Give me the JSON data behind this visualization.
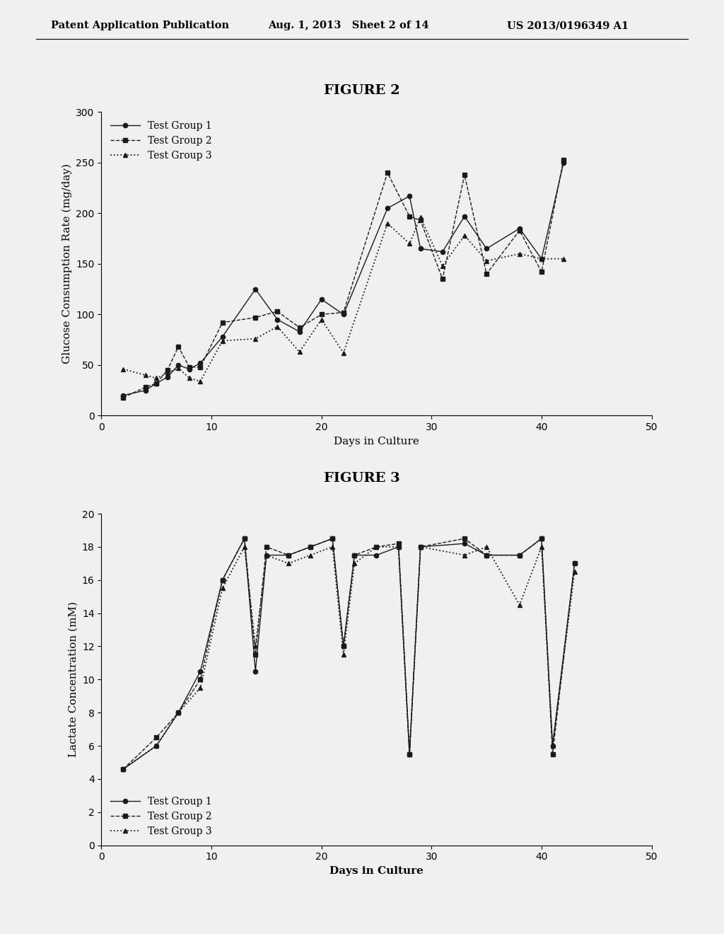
{
  "fig2_title": "FIGURE 2",
  "fig3_title": "FIGURE 3",
  "header_left": "Patent Application Publication",
  "header_mid": "Aug. 1, 2013   Sheet 2 of 14",
  "header_right": "US 2013/0196349 A1",
  "fig2": {
    "xlabel": "Days in Culture",
    "ylabel": "Glucose Consumption Rate (mg/day)",
    "xlim": [
      0,
      50
    ],
    "ylim": [
      0,
      300
    ],
    "xticks": [
      0,
      10,
      20,
      30,
      40,
      50
    ],
    "yticks": [
      0,
      50,
      100,
      150,
      200,
      250,
      300
    ],
    "group1_x": [
      2,
      4,
      5,
      6,
      7,
      8,
      9,
      11,
      14,
      16,
      18,
      20,
      22,
      26,
      28,
      29,
      31,
      33,
      35,
      38,
      40,
      42
    ],
    "group1_y": [
      20,
      25,
      32,
      38,
      50,
      46,
      52,
      78,
      125,
      95,
      83,
      115,
      100,
      205,
      217,
      165,
      162,
      197,
      165,
      185,
      155,
      250
    ],
    "group2_x": [
      2,
      4,
      5,
      6,
      7,
      8,
      9,
      11,
      14,
      16,
      18,
      20,
      22,
      26,
      28,
      29,
      31,
      33,
      35,
      38,
      40,
      42
    ],
    "group2_y": [
      18,
      28,
      32,
      45,
      68,
      48,
      48,
      92,
      97,
      103,
      87,
      100,
      102,
      240,
      197,
      193,
      135,
      238,
      140,
      183,
      142,
      253
    ],
    "group3_x": [
      2,
      4,
      5,
      6,
      7,
      8,
      9,
      11,
      14,
      16,
      18,
      20,
      22,
      26,
      28,
      29,
      31,
      33,
      35,
      38,
      40,
      42
    ],
    "group3_y": [
      46,
      40,
      37,
      42,
      47,
      37,
      34,
      74,
      76,
      88,
      63,
      95,
      62,
      190,
      170,
      196,
      148,
      178,
      153,
      160,
      155,
      155
    ],
    "legend_labels": [
      "Test Group 1",
      "Test Group 2",
      "Test Group 3"
    ]
  },
  "fig3": {
    "xlabel": "Days in Culture",
    "ylabel": "Lactate Concentration (mM)",
    "xlim": [
      0,
      50
    ],
    "ylim": [
      0,
      20
    ],
    "xticks": [
      0,
      10,
      20,
      30,
      40,
      50
    ],
    "yticks": [
      0,
      2,
      4,
      6,
      8,
      10,
      12,
      14,
      16,
      18,
      20
    ],
    "group1_x": [
      2,
      5,
      7,
      9,
      11,
      13,
      14,
      15,
      17,
      19,
      21,
      22,
      23,
      25,
      27,
      28,
      29,
      33,
      35,
      38,
      40,
      41,
      43
    ],
    "group1_y": [
      4.6,
      6.0,
      8.0,
      10.5,
      16.0,
      18.5,
      10.5,
      17.5,
      17.5,
      18.0,
      18.5,
      12.0,
      17.5,
      17.5,
      18.0,
      5.5,
      18.0,
      18.2,
      17.5,
      17.5,
      18.5,
      6.0,
      17.0
    ],
    "group2_x": [
      2,
      5,
      7,
      9,
      11,
      13,
      14,
      15,
      17,
      19,
      21,
      22,
      23,
      25,
      27,
      28,
      29,
      33,
      35,
      38,
      40,
      41,
      43
    ],
    "group2_y": [
      4.6,
      6.5,
      8.0,
      10.0,
      16.0,
      18.5,
      11.5,
      18.0,
      17.5,
      18.0,
      18.5,
      12.0,
      17.5,
      18.0,
      18.2,
      5.5,
      18.0,
      18.5,
      17.5,
      17.5,
      18.5,
      5.5,
      17.0
    ],
    "group3_x": [
      2,
      5,
      7,
      9,
      11,
      13,
      14,
      15,
      17,
      19,
      21,
      22,
      23,
      25,
      27,
      28,
      29,
      33,
      35,
      38,
      40,
      41,
      43
    ],
    "group3_y": [
      4.6,
      6.0,
      8.0,
      9.5,
      15.5,
      18.0,
      12.0,
      17.5,
      17.0,
      17.5,
      18.0,
      11.5,
      17.0,
      18.0,
      18.0,
      5.5,
      18.0,
      17.5,
      18.0,
      14.5,
      18.0,
      6.0,
      16.5
    ],
    "legend_labels": [
      "Test Group 1",
      "Test Group 2",
      "Test Group 3"
    ]
  },
  "line_color": "#1a1a1a",
  "background_color": "#f0f0f0",
  "font_family": "DejaVu Serif"
}
